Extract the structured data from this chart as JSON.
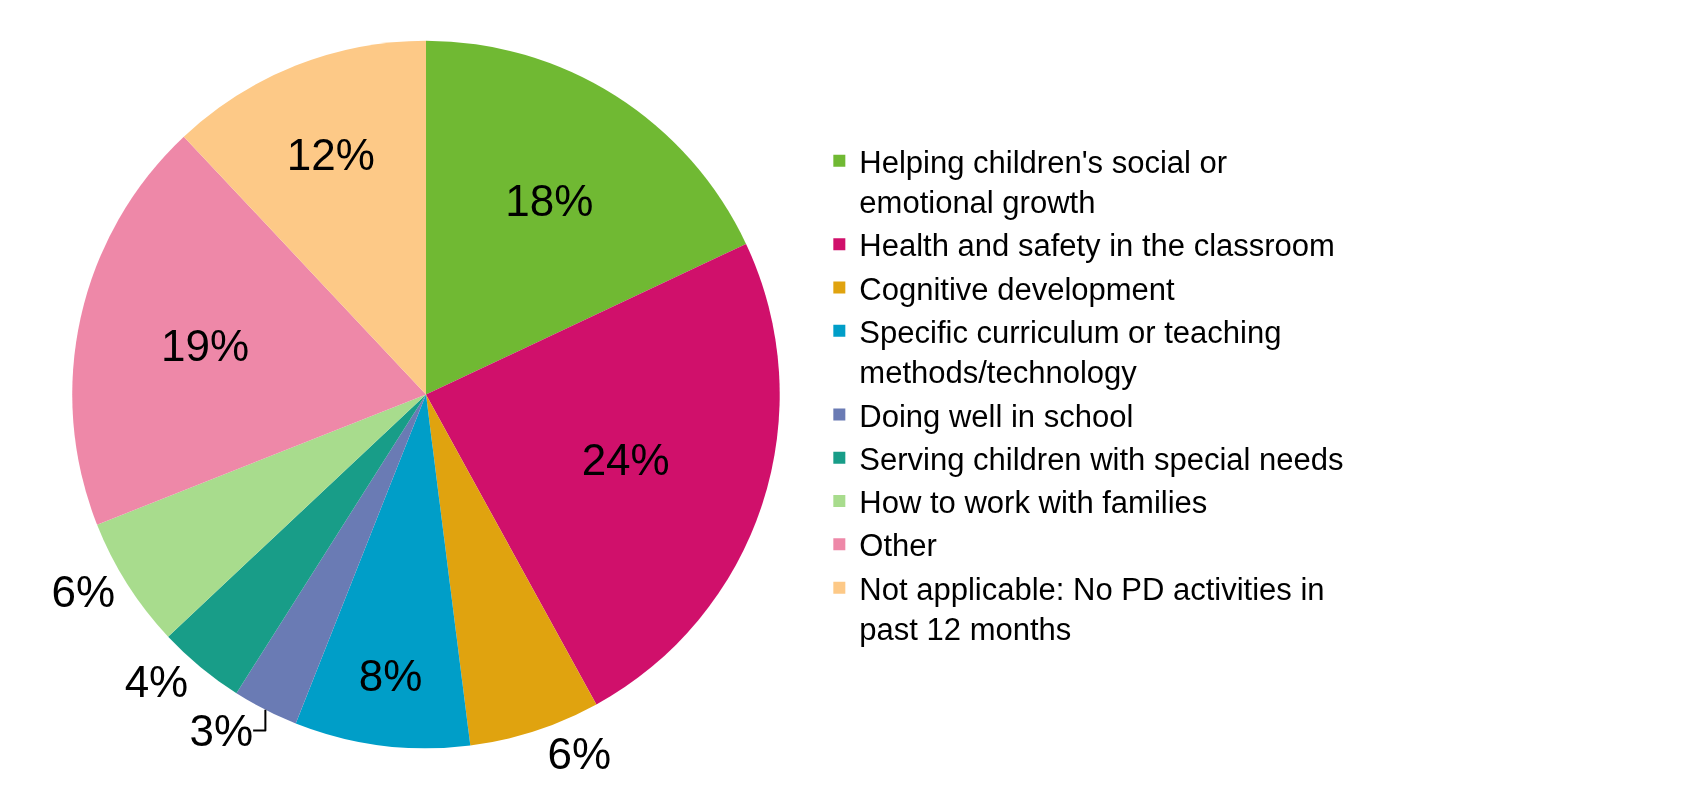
{
  "chart_data": {
    "type": "pie",
    "categories": [
      "Helping children's social or emotional growth",
      "Health and safety in the classroom",
      "Cognitive development",
      "Specific curriculum or teaching methods/technology",
      "Doing well in school",
      "Serving children with special needs",
      "How to work with families",
      "Other",
      "Not applicable: No PD activities in past 12 months"
    ],
    "values": [
      18,
      24,
      6,
      8,
      3,
      4,
      6,
      19,
      12
    ],
    "value_labels": [
      "18%",
      "24%",
      "6%",
      "8%",
      "3%",
      "4%",
      "6%",
      "19%",
      "12%"
    ],
    "colors": [
      "#70b933",
      "#d0106b",
      "#e0a30f",
      "#009ec8",
      "#6a7bb4",
      "#189d88",
      "#a8dc8d",
      "#ee88a8",
      "#fdc987"
    ],
    "legend": "right"
  }
}
